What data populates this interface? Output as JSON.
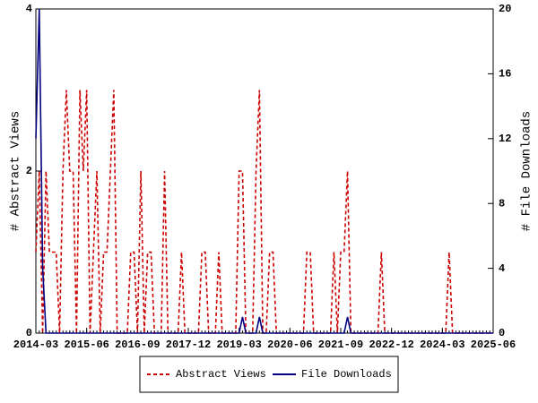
{
  "chart_data": {
    "type": "line",
    "x": [
      "2014-03",
      "2014-04",
      "2014-05",
      "2014-06",
      "2014-07",
      "2014-08",
      "2014-09",
      "2014-10",
      "2014-11",
      "2014-12",
      "2015-01",
      "2015-02",
      "2015-03",
      "2015-04",
      "2015-05",
      "2015-06",
      "2015-07",
      "2015-08",
      "2015-09",
      "2015-10",
      "2015-11",
      "2015-12",
      "2016-01",
      "2016-02",
      "2016-03",
      "2016-04",
      "2016-05",
      "2016-06",
      "2016-07",
      "2016-08",
      "2016-09",
      "2016-10",
      "2016-11",
      "2016-12",
      "2017-01",
      "2017-02",
      "2017-03",
      "2017-04",
      "2017-05",
      "2017-06",
      "2017-07",
      "2017-08",
      "2017-09",
      "2017-10",
      "2017-11",
      "2017-12",
      "2018-01",
      "2018-02",
      "2018-03",
      "2018-04",
      "2018-05",
      "2018-06",
      "2018-07",
      "2018-08",
      "2018-09",
      "2018-10",
      "2018-11",
      "2018-12",
      "2019-01",
      "2019-02",
      "2019-03",
      "2019-04",
      "2019-05",
      "2019-06",
      "2019-07",
      "2019-08",
      "2019-09",
      "2019-10",
      "2019-11",
      "2019-12",
      "2020-01",
      "2020-02",
      "2020-03",
      "2020-04",
      "2020-05",
      "2020-06",
      "2020-07",
      "2020-08",
      "2020-09",
      "2020-10",
      "2020-11",
      "2020-12",
      "2021-01",
      "2021-02",
      "2021-03",
      "2021-04",
      "2021-05",
      "2021-06",
      "2021-07",
      "2021-08",
      "2021-09",
      "2021-10",
      "2021-11",
      "2021-12",
      "2022-01",
      "2022-02",
      "2022-03",
      "2022-04",
      "2022-05",
      "2022-06",
      "2022-07",
      "2022-08",
      "2022-09",
      "2022-10",
      "2022-11",
      "2022-12",
      "2023-01",
      "2023-02",
      "2023-03",
      "2023-04",
      "2023-05",
      "2023-06",
      "2023-07",
      "2023-08",
      "2023-09",
      "2023-10",
      "2023-11",
      "2023-12",
      "2024-01",
      "2024-02",
      "2024-03",
      "2024-04",
      "2024-05",
      "2024-06",
      "2024-07",
      "2024-08",
      "2024-09",
      "2024-10",
      "2024-11",
      "2024-12",
      "2025-01",
      "2025-02",
      "2025-03",
      "2025-04",
      "2025-05",
      "2025-06"
    ],
    "series": [
      {
        "name": "Abstract Views",
        "color": "#cc0000",
        "dashed": true,
        "values": [
          1,
          2,
          0,
          2,
          1,
          1,
          1,
          0,
          2,
          3,
          2,
          2,
          0,
          3,
          2,
          3,
          0,
          1,
          2,
          0,
          1,
          1,
          2,
          3,
          0,
          0,
          0,
          0,
          1,
          1,
          0,
          2,
          0,
          1,
          1,
          0,
          0,
          0,
          2,
          0,
          0,
          0,
          0,
          1,
          0,
          0,
          0,
          0,
          0,
          1,
          1,
          0,
          0,
          0,
          1,
          0,
          0,
          0,
          0,
          0,
          2,
          2,
          0,
          0,
          0,
          2,
          3,
          0,
          0,
          1,
          1,
          0,
          0,
          0,
          0,
          0,
          0,
          0,
          0,
          0,
          1,
          1,
          0,
          0,
          0,
          0,
          0,
          0,
          1,
          0,
          1,
          1,
          2,
          0,
          0,
          0,
          0,
          0,
          0,
          0,
          0,
          0,
          1,
          0,
          0,
          0,
          0,
          0,
          0,
          0,
          0,
          0,
          0,
          0,
          0,
          0,
          0,
          0,
          0,
          0,
          0,
          0,
          1,
          0,
          0,
          0,
          0,
          0,
          0,
          0,
          0,
          0,
          0,
          0,
          0,
          0
        ]
      },
      {
        "name": "File Downloads",
        "color": "#000080",
        "dashed": false,
        "axis": "y2",
        "values": [
          12,
          20,
          4,
          0,
          0,
          0,
          0,
          0,
          0,
          0,
          0,
          0,
          0,
          0,
          0,
          0,
          0,
          0,
          0,
          0,
          0,
          0,
          0,
          0,
          0,
          0,
          0,
          0,
          0,
          0,
          0,
          0,
          0,
          0,
          0,
          0,
          0,
          0,
          0,
          0,
          0,
          0,
          0,
          0,
          0,
          0,
          0,
          0,
          0,
          0,
          0,
          0,
          0,
          0,
          0,
          0,
          0,
          0,
          0,
          0,
          0,
          1,
          0,
          0,
          0,
          0,
          1,
          0,
          0,
          0,
          0,
          0,
          0,
          0,
          0,
          0,
          0,
          0,
          0,
          0,
          0,
          0,
          0,
          0,
          0,
          0,
          0,
          0,
          0,
          0,
          0,
          0,
          1,
          0,
          0,
          0,
          0,
          0,
          0,
          0,
          0,
          0,
          0,
          0,
          0,
          0,
          0,
          0,
          0,
          0,
          0,
          0,
          0,
          0,
          0,
          0,
          0,
          0,
          0,
          0,
          0,
          0,
          0,
          0,
          0,
          0,
          0,
          0,
          0,
          0,
          0,
          0,
          0,
          0,
          0,
          0
        ]
      }
    ],
    "xlim": [
      "2014-03",
      "2025-06"
    ],
    "xticks": [
      "2014-03",
      "2015-06",
      "2016-09",
      "2017-12",
      "2019-03",
      "2020-06",
      "2021-09",
      "2022-12",
      "2024-03",
      "2025-06"
    ],
    "ylabel": "# Abstract Views",
    "ylim": [
      0,
      4
    ],
    "yticks": [
      0,
      2,
      4
    ],
    "y2label": "# File Downloads",
    "y2lim": [
      0,
      20
    ],
    "y2ticks": [
      0,
      4,
      8,
      12,
      16,
      20
    ]
  }
}
